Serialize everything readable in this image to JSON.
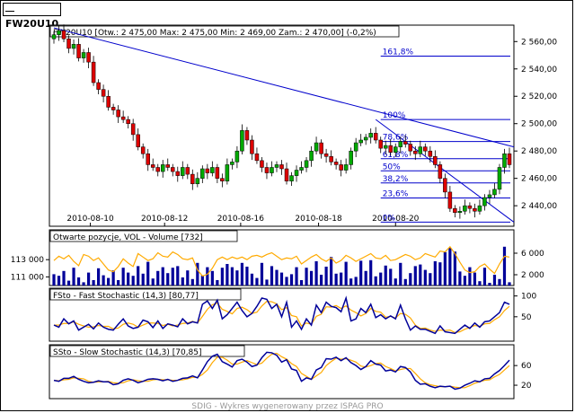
{
  "window": {
    "title": "FW20U10"
  },
  "footer": "SDIG - Wykres wygenerowany przez ISPAG PRO",
  "colors": {
    "up": "#00aa00",
    "down": "#dd0000",
    "line": "#0000cc",
    "signal": "#ffaa00",
    "bar": "#000099",
    "fib": "#0000cc"
  },
  "chart_data": [
    {
      "type": "candlestick",
      "title": "FW20U10 [Otw.: 2 475,00  Max: 2 475,00  Min: 2 469,00  Zam.: 2 470,00] (-0,2%)",
      "x_labels": [
        "2010-08-10",
        "2010-08-12",
        "2010-08-16",
        "2010-08-18",
        "2010-08-20"
      ],
      "y_ticks": [
        "2 560,00",
        "2 540,00",
        "2 520,00",
        "2 500,00",
        "2 480,00",
        "2 460,00",
        "2 440,00"
      ],
      "ylim": [
        2425,
        2572
      ],
      "fibonacci": {
        "levels": [
          "161,8%",
          "100%",
          "78,6%",
          "61,8%",
          "50%",
          "38,2%",
          "23,6%",
          "0%"
        ],
        "high": 2503,
        "low": 2428
      },
      "close": [
        2565,
        2568,
        2562,
        2555,
        2558,
        2548,
        2552,
        2545,
        2530,
        2525,
        2520,
        2512,
        2510,
        2505,
        2503,
        2500,
        2492,
        2483,
        2478,
        2470,
        2468,
        2465,
        2470,
        2468,
        2465,
        2462,
        2468,
        2463,
        2456,
        2460,
        2467,
        2464,
        2468,
        2460,
        2458,
        2470,
        2472,
        2480,
        2495,
        2488,
        2478,
        2473,
        2468,
        2464,
        2468,
        2470,
        2467,
        2458,
        2462,
        2466,
        2468,
        2473,
        2480,
        2486,
        2478,
        2476,
        2472,
        2470,
        2466,
        2470,
        2480,
        2486,
        2488,
        2490,
        2493,
        2488,
        2482,
        2484,
        2479,
        2483,
        2487,
        2485,
        2480,
        2478,
        2483,
        2480,
        2476,
        2470,
        2460,
        2450,
        2438,
        2435,
        2436,
        2440,
        2438,
        2436,
        2440,
        2446,
        2448,
        2452,
        2468,
        2478,
        2470
      ]
    },
    {
      "type": "bar",
      "title": "Otwarte pozycje, VOL - Volume [732]",
      "y_ticks_left": [
        "113 000",
        "111 000"
      ],
      "y_ticks_right": [
        "6 000",
        "2 000"
      ],
      "volume_ylim": [
        0,
        8000
      ],
      "volume": [
        2100,
        1800,
        2700,
        900,
        3300,
        1500,
        600,
        2400,
        1000,
        3200,
        1900,
        1400,
        2800,
        1000,
        3300,
        2400,
        1800,
        3600,
        2200,
        4400,
        1300,
        2700,
        3400,
        2300,
        3300,
        3600,
        1500,
        2800,
        1200,
        4200,
        1900,
        3400,
        2700,
        1000,
        3300,
        4000,
        3400,
        2800,
        4200,
        3500,
        2200,
        1400,
        4200,
        1100,
        3600,
        2900,
        2400,
        1600,
        2100,
        3400,
        1000,
        3300,
        2700,
        4500,
        2000,
        3500,
        5300,
        2200,
        2400,
        4400,
        1300,
        1600,
        4600,
        2700,
        4700,
        1700,
        2400,
        3700,
        3100,
        1300,
        4200,
        1200,
        2300,
        3600,
        3900,
        2900,
        2300,
        4500,
        4300,
        6200,
        7000,
        6300,
        2600,
        1800,
        3400,
        2400,
        800,
        3300,
        500,
        2000,
        1200,
        7200,
        600
      ],
      "open_interest_ylim": [
        110000,
        115000
      ],
      "open_interest": [
        112900,
        113400,
        113100,
        113500,
        112800,
        112300,
        113600,
        113400,
        112900,
        113200,
        112500,
        111800,
        111600,
        112200,
        113100,
        112600,
        112200,
        113700,
        113300,
        112900,
        113100,
        113800,
        113400,
        113300,
        113900,
        113600,
        113100,
        113000,
        113200,
        111800,
        111100,
        111300,
        112000,
        113000,
        113300,
        113000,
        113300,
        113100,
        113300,
        113000,
        113400,
        113500,
        113300,
        113600,
        113800,
        113400,
        113000,
        113200,
        113100,
        113400,
        112500,
        112900,
        113300,
        113600,
        113100,
        112800,
        113200,
        112600,
        112900,
        113500,
        113200,
        112800,
        113100,
        113400,
        113700,
        113200,
        113100,
        113500,
        112900,
        113000,
        113300,
        113600,
        113400,
        113000,
        113200,
        113700,
        113500,
        113300,
        114000,
        113900,
        114500,
        113700,
        112700,
        111800,
        111500,
        111600,
        112200,
        112500,
        111900,
        111400,
        112500,
        113400,
        113300
      ]
    },
    {
      "type": "line",
      "title": "FSto - Fast Stochastic (14,3) [80,77]",
      "y_ticks": [
        "100",
        "50"
      ],
      "ylim": [
        0,
        110
      ],
      "k": [
        30,
        25,
        45,
        33,
        40,
        18,
        25,
        32,
        21,
        35,
        25,
        20,
        18,
        32,
        45,
        28,
        22,
        25,
        42,
        38,
        24,
        40,
        22,
        33,
        30,
        26,
        45,
        33,
        38,
        35,
        80,
        88,
        70,
        90,
        45,
        55,
        70,
        85,
        65,
        50,
        58,
        75,
        95,
        92,
        70,
        80,
        50,
        85,
        25,
        40,
        20,
        45,
        30,
        78,
        60,
        85,
        75,
        72,
        62,
        95,
        40,
        45,
        70,
        60,
        80,
        48,
        55,
        45,
        52,
        45,
        78,
        45,
        18,
        28,
        20,
        20,
        15,
        10,
        28,
        14,
        12,
        10,
        20,
        30,
        22,
        35,
        25,
        38,
        40,
        50,
        60,
        85,
        80
      ],
      "d": [
        30,
        30,
        34,
        34,
        38,
        32,
        28,
        25,
        26,
        29,
        27,
        27,
        21,
        23,
        32,
        35,
        32,
        25,
        30,
        35,
        35,
        34,
        29,
        32,
        28,
        30,
        34,
        35,
        39,
        35,
        51,
        68,
        79,
        83,
        68,
        63,
        57,
        70,
        73,
        67,
        58,
        61,
        76,
        87,
        86,
        81,
        67,
        72,
        53,
        50,
        28,
        35,
        32,
        51,
        56,
        74,
        73,
        77,
        70,
        76,
        66,
        60,
        52,
        58,
        70,
        63,
        61,
        49,
        51,
        47,
        58,
        56,
        47,
        30,
        22,
        23,
        18,
        15,
        18,
        17,
        18,
        12,
        14,
        20,
        24,
        29,
        27,
        33,
        34,
        43,
        50,
        65,
        75
      ]
    },
    {
      "type": "line",
      "title": "SSto - Slow Stochastic (14,3) [70,85]",
      "y_ticks": [
        "60",
        "20"
      ],
      "ylim": [
        0,
        95
      ],
      "k": [
        30,
        28,
        34,
        34,
        38,
        32,
        28,
        25,
        26,
        29,
        27,
        27,
        21,
        23,
        30,
        33,
        30,
        25,
        28,
        32,
        33,
        32,
        29,
        32,
        28,
        30,
        34,
        35,
        39,
        35,
        51,
        68,
        79,
        83,
        68,
        63,
        57,
        70,
        73,
        67,
        58,
        61,
        76,
        87,
        86,
        81,
        67,
        72,
        53,
        50,
        28,
        35,
        32,
        51,
        56,
        74,
        73,
        77,
        70,
        76,
        66,
        60,
        52,
        58,
        70,
        63,
        61,
        49,
        51,
        47,
        58,
        56,
        47,
        30,
        22,
        23,
        18,
        15,
        18,
        17,
        18,
        12,
        14,
        20,
        24,
        29,
        27,
        33,
        34,
        43,
        50,
        60,
        71
      ],
      "d": [
        30,
        29,
        31,
        32,
        35,
        34,
        33,
        28,
        26,
        27,
        27,
        28,
        25,
        24,
        25,
        29,
        31,
        29,
        28,
        28,
        31,
        32,
        31,
        31,
        30,
        30,
        31,
        33,
        36,
        36,
        42,
        51,
        66,
        77,
        77,
        71,
        63,
        63,
        67,
        70,
        66,
        62,
        65,
        75,
        83,
        85,
        78,
        73,
        64,
        58,
        44,
        38,
        32,
        39,
        46,
        60,
        68,
        75,
        73,
        74,
        71,
        67,
        59,
        57,
        60,
        64,
        65,
        58,
        54,
        49,
        52,
        54,
        54,
        44,
        33,
        25,
        21,
        19,
        17,
        17,
        18,
        16,
        15,
        15,
        19,
        24,
        27,
        30,
        31,
        37,
        42,
        51,
        60
      ]
    }
  ]
}
